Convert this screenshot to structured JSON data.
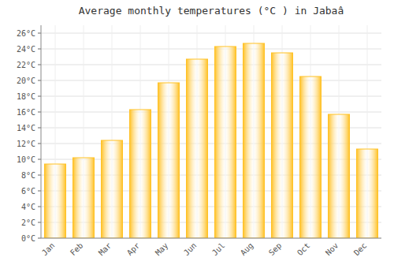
{
  "chart_data": {
    "type": "bar",
    "title": "Average monthly temperatures (°C ) in Jabaâ",
    "categories": [
      "Jan",
      "Feb",
      "Mar",
      "Apr",
      "May",
      "Jun",
      "Jul",
      "Aug",
      "Sep",
      "Oct",
      "Nov",
      "Dec"
    ],
    "values": [
      9.4,
      10.2,
      12.4,
      16.3,
      19.7,
      22.7,
      24.3,
      24.7,
      23.5,
      20.5,
      15.7,
      11.3
    ],
    "color": "#FFC125",
    "ylim": [
      0,
      27
    ],
    "yticks": [
      {
        "value": 0,
        "label": "0°C"
      },
      {
        "value": 2,
        "label": "2°C"
      },
      {
        "value": 4,
        "label": "4°C"
      },
      {
        "value": 6,
        "label": "6°C"
      },
      {
        "value": 8,
        "label": "8°C"
      },
      {
        "value": 10,
        "label": "10°C"
      },
      {
        "value": 12,
        "label": "12°C"
      },
      {
        "value": 14,
        "label": "14°C"
      },
      {
        "value": 16,
        "label": "16°C"
      },
      {
        "value": 18,
        "label": "18°C"
      },
      {
        "value": 20,
        "label": "20°C"
      },
      {
        "value": 22,
        "label": "22°C"
      },
      {
        "value": 24,
        "label": "24°C"
      },
      {
        "value": 26,
        "label": "26°C"
      }
    ],
    "grid": true
  }
}
